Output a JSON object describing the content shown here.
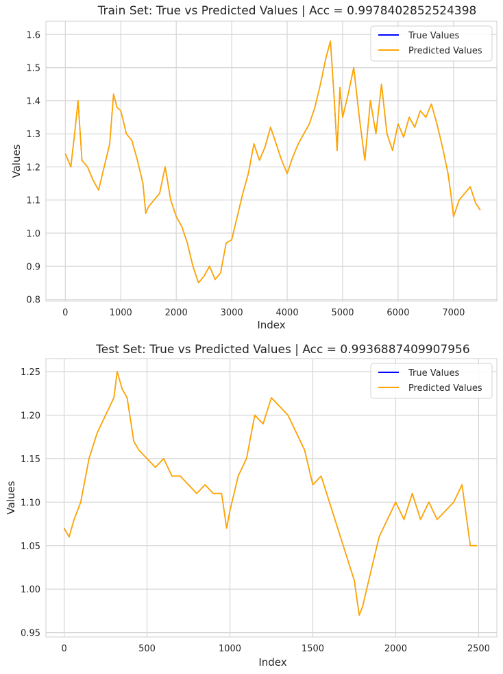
{
  "chart_data": [
    {
      "type": "line",
      "title": "Train Set: True vs Predicted Values | Acc = 0.9978402852524398",
      "xlabel": "Index",
      "ylabel": "Values",
      "xlim": [
        -350,
        7780
      ],
      "ylim": [
        0.795,
        1.64
      ],
      "xticks": [
        0,
        1000,
        2000,
        3000,
        4000,
        5000,
        6000,
        7000
      ],
      "xtick_labels": [
        "0",
        "1000",
        "2000",
        "3000",
        "4000",
        "5000",
        "6000",
        "7000"
      ],
      "yticks": [
        0.8,
        0.9,
        1.0,
        1.1,
        1.2,
        1.3,
        1.4,
        1.5,
        1.6
      ],
      "ytick_labels": [
        "0.8",
        "0.9",
        "1.0",
        "1.1",
        "1.2",
        "1.3",
        "1.4",
        "1.5",
        "1.6"
      ],
      "grid": true,
      "legend_position": "top-right",
      "series": [
        {
          "name": "True Values",
          "color": "#0000ff"
        },
        {
          "name": "Predicted Values",
          "color": "#ffa500"
        }
      ],
      "x": [
        0,
        100,
        180,
        230,
        300,
        400,
        500,
        600,
        700,
        800,
        870,
        930,
        1000,
        1100,
        1200,
        1300,
        1400,
        1450,
        1500,
        1600,
        1700,
        1800,
        1900,
        2000,
        2100,
        2200,
        2300,
        2400,
        2500,
        2600,
        2700,
        2800,
        2900,
        3000,
        3100,
        3200,
        3300,
        3400,
        3500,
        3600,
        3700,
        3800,
        3900,
        4000,
        4100,
        4200,
        4300,
        4400,
        4500,
        4600,
        4700,
        4780,
        4850,
        4900,
        4950,
        5000,
        5100,
        5200,
        5300,
        5400,
        5500,
        5600,
        5700,
        5800,
        5900,
        6000,
        6100,
        6200,
        6300,
        6400,
        6500,
        6600,
        6700,
        6800,
        6900,
        6950,
        7000,
        7100,
        7200,
        7300,
        7400,
        7480
      ],
      "true_values": [
        1.24,
        1.2,
        1.32,
        1.4,
        1.22,
        1.2,
        1.16,
        1.13,
        1.2,
        1.27,
        1.42,
        1.38,
        1.37,
        1.3,
        1.28,
        1.22,
        1.15,
        1.06,
        1.08,
        1.1,
        1.12,
        1.2,
        1.1,
        1.05,
        1.02,
        0.97,
        0.9,
        0.85,
        0.87,
        0.9,
        0.86,
        0.88,
        0.97,
        0.98,
        1.05,
        1.12,
        1.18,
        1.27,
        1.22,
        1.26,
        1.32,
        1.27,
        1.22,
        1.18,
        1.23,
        1.27,
        1.3,
        1.33,
        1.38,
        1.45,
        1.53,
        1.58,
        1.4,
        1.25,
        1.44,
        1.35,
        1.42,
        1.5,
        1.35,
        1.22,
        1.4,
        1.3,
        1.45,
        1.3,
        1.25,
        1.33,
        1.29,
        1.35,
        1.32,
        1.37,
        1.35,
        1.39,
        1.33,
        1.26,
        1.18,
        1.12,
        1.05,
        1.1,
        1.12,
        1.14,
        1.09,
        1.07
      ],
      "predicted_values": [
        1.24,
        1.2,
        1.32,
        1.4,
        1.22,
        1.2,
        1.16,
        1.13,
        1.2,
        1.27,
        1.42,
        1.38,
        1.37,
        1.3,
        1.28,
        1.22,
        1.15,
        1.06,
        1.08,
        1.1,
        1.12,
        1.2,
        1.1,
        1.05,
        1.02,
        0.97,
        0.9,
        0.85,
        0.87,
        0.9,
        0.86,
        0.88,
        0.97,
        0.98,
        1.05,
        1.12,
        1.18,
        1.27,
        1.22,
        1.26,
        1.32,
        1.27,
        1.22,
        1.18,
        1.23,
        1.27,
        1.3,
        1.33,
        1.38,
        1.45,
        1.53,
        1.58,
        1.4,
        1.25,
        1.44,
        1.35,
        1.42,
        1.5,
        1.35,
        1.22,
        1.4,
        1.3,
        1.45,
        1.3,
        1.25,
        1.33,
        1.29,
        1.35,
        1.32,
        1.37,
        1.35,
        1.39,
        1.33,
        1.26,
        1.18,
        1.12,
        1.05,
        1.1,
        1.12,
        1.14,
        1.09,
        1.07
      ]
    },
    {
      "type": "line",
      "title": "Test Set: True vs Predicted Values | Acc = 0.9936887409907956",
      "xlabel": "Index",
      "ylabel": "Values",
      "xlim": [
        -110,
        2610
      ],
      "ylim": [
        0.945,
        1.265
      ],
      "xticks": [
        0,
        500,
        1000,
        1500,
        2000,
        2500
      ],
      "xtick_labels": [
        "0",
        "500",
        "1000",
        "1500",
        "2000",
        "2500"
      ],
      "yticks": [
        0.95,
        1.0,
        1.05,
        1.1,
        1.15,
        1.2,
        1.25
      ],
      "ytick_labels": [
        "0.95",
        "1.00",
        "1.05",
        "1.10",
        "1.15",
        "1.20",
        "1.25"
      ],
      "grid": true,
      "legend_position": "top-right",
      "series": [
        {
          "name": "True Values",
          "color": "#0000ff"
        },
        {
          "name": "Predicted Values",
          "color": "#ffa500"
        }
      ],
      "x": [
        0,
        30,
        60,
        100,
        150,
        200,
        250,
        300,
        320,
        350,
        380,
        420,
        450,
        500,
        550,
        600,
        650,
        700,
        750,
        800,
        850,
        900,
        950,
        980,
        1000,
        1050,
        1100,
        1150,
        1200,
        1250,
        1300,
        1350,
        1400,
        1450,
        1500,
        1550,
        1600,
        1650,
        1700,
        1750,
        1780,
        1800,
        1850,
        1900,
        1950,
        2000,
        2050,
        2100,
        2150,
        2200,
        2250,
        2300,
        2350,
        2400,
        2450,
        2490
      ],
      "true_values": [
        1.07,
        1.06,
        1.08,
        1.1,
        1.15,
        1.18,
        1.2,
        1.22,
        1.25,
        1.23,
        1.22,
        1.17,
        1.16,
        1.15,
        1.14,
        1.15,
        1.13,
        1.13,
        1.12,
        1.11,
        1.12,
        1.11,
        1.11,
        1.07,
        1.09,
        1.13,
        1.15,
        1.2,
        1.19,
        1.22,
        1.21,
        1.2,
        1.18,
        1.16,
        1.12,
        1.13,
        1.1,
        1.07,
        1.04,
        1.01,
        0.97,
        0.98,
        1.02,
        1.06,
        1.08,
        1.1,
        1.08,
        1.11,
        1.08,
        1.1,
        1.08,
        1.09,
        1.1,
        1.12,
        1.05,
        1.05
      ],
      "predicted_values": [
        1.07,
        1.06,
        1.08,
        1.1,
        1.15,
        1.18,
        1.2,
        1.22,
        1.25,
        1.23,
        1.22,
        1.17,
        1.16,
        1.15,
        1.14,
        1.15,
        1.13,
        1.13,
        1.12,
        1.11,
        1.12,
        1.11,
        1.11,
        1.07,
        1.09,
        1.13,
        1.15,
        1.2,
        1.19,
        1.22,
        1.21,
        1.2,
        1.18,
        1.16,
        1.12,
        1.13,
        1.1,
        1.07,
        1.04,
        1.01,
        0.97,
        0.98,
        1.02,
        1.06,
        1.08,
        1.1,
        1.08,
        1.11,
        1.08,
        1.1,
        1.08,
        1.09,
        1.1,
        1.12,
        1.05,
        1.05
      ]
    }
  ]
}
